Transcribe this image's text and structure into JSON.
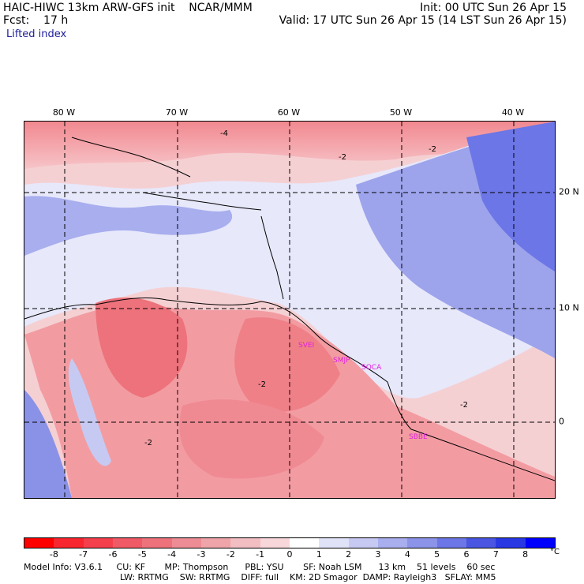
{
  "header": {
    "model_line": "HAIC-HIWC 13km ARW-GFS init    NCAR/MMM",
    "forecast_line": "Fcst:    17 h",
    "init_line": "Init: 00 UTC Sun 26 Apr 15",
    "valid_line": "Valid: 17 UTC Sun 26 Apr 15 (14 LST Sun 26 Apr 15)",
    "field_name": "Lifted index"
  },
  "map": {
    "lon_labels": [
      "80 W",
      "70 W",
      "60 W",
      "50 W",
      "40 W"
    ],
    "lat_labels": [
      "20 N",
      "10 N",
      "0"
    ],
    "contour_labels": [
      "-4",
      "-2",
      "-2",
      "-2",
      "-2",
      "-2"
    ],
    "stations": [
      "SVEI",
      "SMJP",
      "SOCA",
      "SBBE"
    ],
    "colors": {
      "negative_strong": "#e84050",
      "negative_weak": "#f7c8cc",
      "neutral": "#f2f2ff",
      "positive_weak": "#cfd4f4",
      "positive_strong": "#4a55e0",
      "coastline": "#000000",
      "station": "#e020e0"
    }
  },
  "colorbar": {
    "ticks": [
      "-8",
      "-7",
      "-6",
      "-5",
      "-4",
      "-3",
      "-2",
      "-1",
      "0",
      "1",
      "2",
      "3",
      "4",
      "5",
      "6",
      "7",
      "8"
    ],
    "unit": "°C",
    "colors": [
      "#ff0000",
      "#f8262e",
      "#f4404c",
      "#f05a66",
      "#ed727c",
      "#ed8c94",
      "#efa4aa",
      "#f3bec2",
      "#f7d7da",
      "#ffffff",
      "#e0e2f7",
      "#c6caf2",
      "#a8aeee",
      "#8c94ea",
      "#6c76e6",
      "#4a56e2",
      "#2a38e4",
      "#0000ff"
    ]
  },
  "footer": {
    "line1": "Model Info: V3.6.1     CU: KF       MP: Thompson      PBL: YSU       SF: Noah LSM      13 km    51 levels    60 sec",
    "line2": "LW: RRTMG    SW: RRTMG    DIFF: full    KM: 2D Smagor  DAMP: Rayleigh3   SFLAY: MM5"
  }
}
